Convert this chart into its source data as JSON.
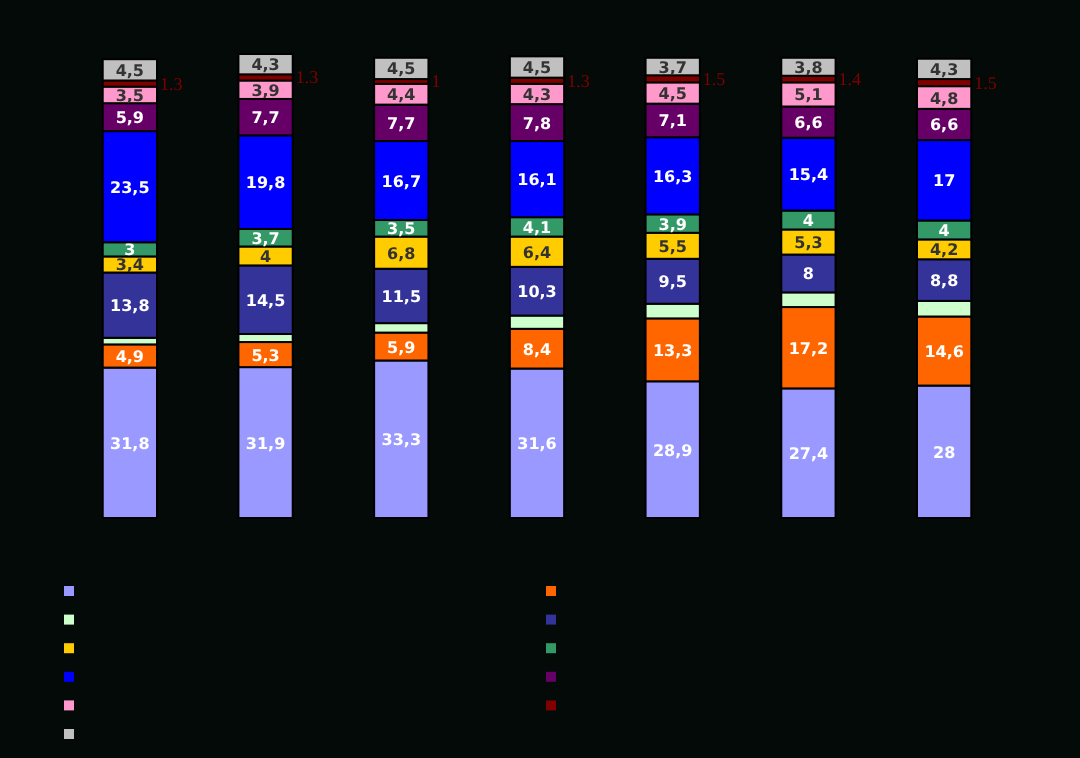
{
  "chart_data": {
    "type": "bar",
    "stacked": true,
    "categories": [
      null,
      null,
      null,
      null,
      null,
      null,
      null
    ],
    "series": [
      {
        "color": "#9999ff",
        "values": [
          31.8,
          31.9,
          33.3,
          31.6,
          28.9,
          27.4,
          28
        ],
        "value_labels": [
          "31,8",
          "31,9",
          "33,3",
          "31,6",
          "28,9",
          "27,4",
          "28"
        ]
      },
      {
        "color": "#ff6600",
        "values": [
          4.9,
          5.3,
          5.9,
          8.4,
          13.3,
          17.2,
          14.6
        ],
        "value_labels": [
          "4,9",
          "5,3",
          "5,9",
          "8,4",
          "13,3",
          "17,2",
          "14,6"
        ]
      },
      {
        "color": "#ccffcc",
        "values": [
          1.4,
          1.7,
          2,
          2.8,
          3.1,
          3.1,
          3.3
        ],
        "value_labels": [
          null,
          null,
          null,
          null,
          null,
          null,
          null
        ]
      },
      {
        "color": "#333399",
        "values": [
          13.8,
          14.5,
          11.5,
          10.3,
          9.5,
          8,
          8.8
        ],
        "value_labels": [
          "13,8",
          "14,5",
          "11,5",
          "10,3",
          "9,5",
          "8",
          "8,8"
        ]
      },
      {
        "color": "#ffcc00",
        "values": [
          3.4,
          4,
          6.8,
          6.4,
          5.5,
          5.3,
          4.2
        ],
        "value_labels": [
          "3,4",
          "4",
          "6,8",
          "6,4",
          "5,5",
          "5,3",
          "4,2"
        ]
      },
      {
        "color": "#339966",
        "values": [
          3,
          3.7,
          3.5,
          4.1,
          3.9,
          4,
          4
        ],
        "value_labels": [
          "3",
          "3,7",
          "3,5",
          "4,1",
          "3,9",
          "4",
          "4"
        ]
      },
      {
        "color": "#0000ff",
        "values": [
          23.5,
          19.8,
          16.7,
          16.1,
          16.3,
          15.4,
          17
        ],
        "value_labels": [
          "23,5",
          "19,8",
          "16,7",
          "16,1",
          "16,3",
          "15,4",
          "17"
        ]
      },
      {
        "color": "#660066",
        "values": [
          5.9,
          7.7,
          7.7,
          7.8,
          7.1,
          6.6,
          6.6
        ],
        "value_labels": [
          "5,9",
          "7,7",
          "7,7",
          "7,8",
          "7,1",
          "6,6",
          "6,6"
        ]
      },
      {
        "color": "#ff99cc",
        "values": [
          3.5,
          3.9,
          4.4,
          4.3,
          4.5,
          5.1,
          4.8
        ],
        "value_labels": [
          "3,5",
          "3,9",
          "4,4",
          "4,3",
          "4,5",
          "5,1",
          "4,8"
        ]
      },
      {
        "color": "#800000",
        "values": [
          1.3,
          1.3,
          1,
          1.3,
          1.5,
          1.4,
          1.5
        ],
        "value_labels": [
          "1.3",
          "1.3",
          "1",
          "1.3",
          "1.5",
          "1.4",
          "1.5"
        ]
      },
      {
        "color": "#c0c0c0",
        "values": [
          4.5,
          4.3,
          4.5,
          4.5,
          3.7,
          3.8,
          4.3
        ],
        "value_labels": [
          "4,5",
          "4,3",
          "4,5",
          "4,5",
          "3,7",
          "3,8",
          "4,3"
        ]
      }
    ]
  }
}
